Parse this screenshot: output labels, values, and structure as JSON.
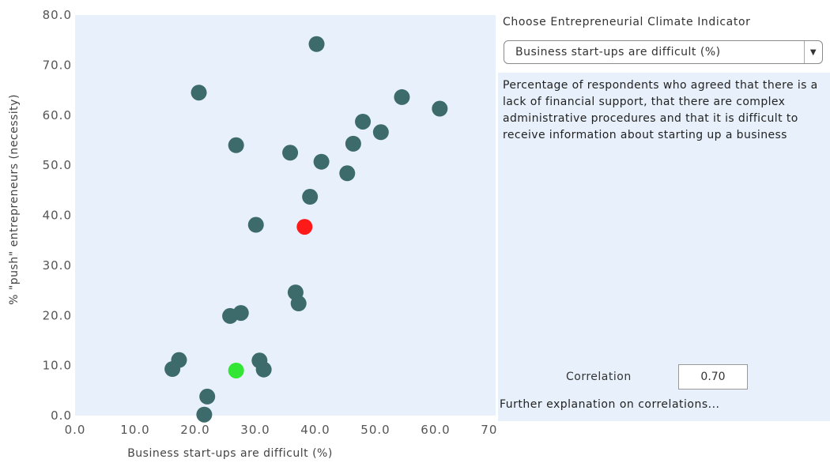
{
  "chart_data": {
    "type": "scatter",
    "xlabel": "Business start-ups are difficult (%)",
    "ylabel": "% \"push\" entrepreneurs (necessity)",
    "xlim": [
      0,
      70
    ],
    "ylim": [
      0,
      80
    ],
    "x_ticks": [
      "0.0",
      "10.0",
      "20.0",
      "30.0",
      "40.0",
      "50.0",
      "60.0",
      "70.0"
    ],
    "y_ticks": [
      "0.0",
      "10.0",
      "20.0",
      "30.0",
      "40.0",
      "50.0",
      "60.0",
      "70.0",
      "80.0"
    ],
    "grid": false,
    "colors": {
      "default": "#3d6b6b",
      "highlight_red": "#ff1a1a",
      "highlight_green": "#33e633",
      "plot_bg": "#e8f1fb"
    },
    "points": [
      {
        "x": 40.2,
        "y": 74.2
      },
      {
        "x": 20.6,
        "y": 64.5
      },
      {
        "x": 54.4,
        "y": 63.6
      },
      {
        "x": 60.7,
        "y": 61.3
      },
      {
        "x": 47.9,
        "y": 58.7
      },
      {
        "x": 50.9,
        "y": 56.6
      },
      {
        "x": 26.8,
        "y": 54.0
      },
      {
        "x": 46.3,
        "y": 54.3
      },
      {
        "x": 35.8,
        "y": 52.5
      },
      {
        "x": 41.0,
        "y": 50.7
      },
      {
        "x": 45.3,
        "y": 48.4
      },
      {
        "x": 39.1,
        "y": 43.7
      },
      {
        "x": 30.1,
        "y": 38.1
      },
      {
        "x": 38.2,
        "y": 37.7,
        "highlight": "red"
      },
      {
        "x": 36.7,
        "y": 24.6
      },
      {
        "x": 37.2,
        "y": 22.4
      },
      {
        "x": 27.6,
        "y": 20.5
      },
      {
        "x": 25.8,
        "y": 19.9
      },
      {
        "x": 17.3,
        "y": 11.1
      },
      {
        "x": 16.2,
        "y": 9.3
      },
      {
        "x": 30.7,
        "y": 11.0
      },
      {
        "x": 31.4,
        "y": 9.2
      },
      {
        "x": 26.8,
        "y": 9.0,
        "highlight": "green"
      },
      {
        "x": 22.0,
        "y": 3.8
      },
      {
        "x": 21.5,
        "y": 0.2
      }
    ]
  },
  "panel": {
    "title": "Choose Entrepreneurial Climate Indicator",
    "select_value": "Business start-ups are difficult (%)",
    "dropdown_icon": "chevron-down",
    "description": "Percentage of respondents who agreed that there is a lack of financial support, that there are complex administrative procedures and that it is difficult to receive information about starting  up a business",
    "correlation_label": "Correlation",
    "correlation_value": "0.70",
    "further_link": "Further explanation on correlations..."
  }
}
